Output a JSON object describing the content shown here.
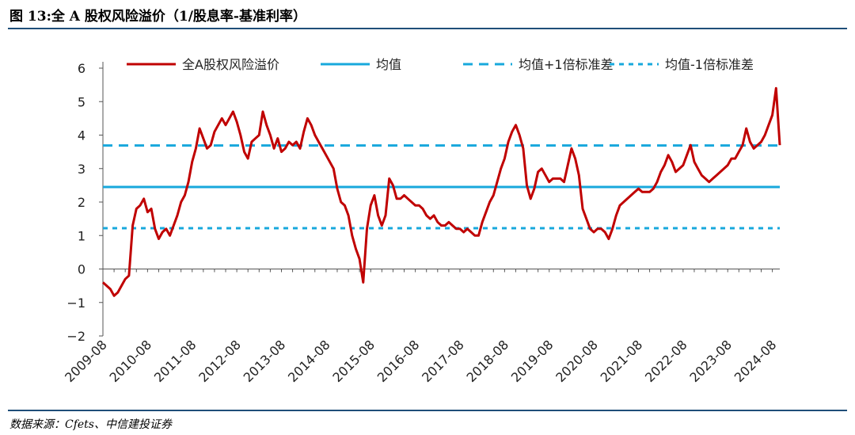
{
  "figure": {
    "title": "图 13:全 A 股权风险溢价（1/股息率-基准利率）",
    "source": "数据来源：Cfets、中信建投证券"
  },
  "colors": {
    "series": "#c00000",
    "mean": "#18a8dc",
    "band": "#18a8dc",
    "rule": "#1f4e79"
  },
  "chart_data": {
    "type": "line",
    "title": "",
    "xlabel": "",
    "ylabel": "",
    "ylim": [
      -2,
      6
    ],
    "yticks": [
      -2,
      -1,
      0,
      1,
      2,
      3,
      4,
      5,
      6
    ],
    "xlim": [
      "2009-08",
      "2024-10"
    ],
    "xticks": [
      "2009-08",
      "2010-08",
      "2011-08",
      "2012-08",
      "2013-08",
      "2014-08",
      "2015-08",
      "2016-08",
      "2017-08",
      "2018-08",
      "2019-08",
      "2020-08",
      "2021-08",
      "2022-08",
      "2023-08",
      "2024-08"
    ],
    "legend_position": "top",
    "grid": false,
    "series": [
      {
        "name": "全A股权风险溢价",
        "style": "solid",
        "points": [
          [
            "2009-08",
            -0.4
          ],
          [
            "2009-09",
            -0.5
          ],
          [
            "2009-10",
            -0.6
          ],
          [
            "2009-11",
            -0.8
          ],
          [
            "2009-12",
            -0.7
          ],
          [
            "2010-01",
            -0.5
          ],
          [
            "2010-02",
            -0.3
          ],
          [
            "2010-03",
            -0.2
          ],
          [
            "2010-04",
            1.3
          ],
          [
            "2010-05",
            1.8
          ],
          [
            "2010-06",
            1.9
          ],
          [
            "2010-07",
            2.1
          ],
          [
            "2010-08",
            1.7
          ],
          [
            "2010-09",
            1.8
          ],
          [
            "2010-10",
            1.2
          ],
          [
            "2010-11",
            0.9
          ],
          [
            "2010-12",
            1.1
          ],
          [
            "2011-01",
            1.2
          ],
          [
            "2011-02",
            1.0
          ],
          [
            "2011-03",
            1.3
          ],
          [
            "2011-04",
            1.6
          ],
          [
            "2011-05",
            2.0
          ],
          [
            "2011-06",
            2.2
          ],
          [
            "2011-07",
            2.6
          ],
          [
            "2011-08",
            3.2
          ],
          [
            "2011-09",
            3.6
          ],
          [
            "2011-10",
            4.2
          ],
          [
            "2011-11",
            3.9
          ],
          [
            "2011-12",
            3.6
          ],
          [
            "2012-01",
            3.7
          ],
          [
            "2012-02",
            4.1
          ],
          [
            "2012-03",
            4.3
          ],
          [
            "2012-04",
            4.5
          ],
          [
            "2012-05",
            4.3
          ],
          [
            "2012-06",
            4.5
          ],
          [
            "2012-07",
            4.7
          ],
          [
            "2012-08",
            4.4
          ],
          [
            "2012-09",
            4.0
          ],
          [
            "2012-10",
            3.5
          ],
          [
            "2012-11",
            3.3
          ],
          [
            "2012-12",
            3.8
          ],
          [
            "2013-01",
            3.9
          ],
          [
            "2013-02",
            4.0
          ],
          [
            "2013-03",
            4.7
          ],
          [
            "2013-04",
            4.3
          ],
          [
            "2013-05",
            4.0
          ],
          [
            "2013-06",
            3.6
          ],
          [
            "2013-07",
            3.9
          ],
          [
            "2013-08",
            3.5
          ],
          [
            "2013-09",
            3.6
          ],
          [
            "2013-10",
            3.8
          ],
          [
            "2013-11",
            3.7
          ],
          [
            "2013-12",
            3.8
          ],
          [
            "2014-01",
            3.6
          ],
          [
            "2014-02",
            4.1
          ],
          [
            "2014-03",
            4.5
          ],
          [
            "2014-04",
            4.3
          ],
          [
            "2014-05",
            4.0
          ],
          [
            "2014-06",
            3.8
          ],
          [
            "2014-07",
            3.6
          ],
          [
            "2014-08",
            3.4
          ],
          [
            "2014-09",
            3.2
          ],
          [
            "2014-10",
            3.0
          ],
          [
            "2014-11",
            2.4
          ],
          [
            "2014-12",
            2.0
          ],
          [
            "2015-01",
            1.9
          ],
          [
            "2015-02",
            1.6
          ],
          [
            "2015-03",
            1.0
          ],
          [
            "2015-04",
            0.6
          ],
          [
            "2015-05",
            0.3
          ],
          [
            "2015-06",
            -0.4
          ],
          [
            "2015-07",
            1.2
          ],
          [
            "2015-08",
            1.9
          ],
          [
            "2015-09",
            2.2
          ],
          [
            "2015-10",
            1.6
          ],
          [
            "2015-11",
            1.3
          ],
          [
            "2015-12",
            1.6
          ],
          [
            "2016-01",
            2.7
          ],
          [
            "2016-02",
            2.5
          ],
          [
            "2016-03",
            2.1
          ],
          [
            "2016-04",
            2.1
          ],
          [
            "2016-05",
            2.2
          ],
          [
            "2016-06",
            2.1
          ],
          [
            "2016-07",
            2.0
          ],
          [
            "2016-08",
            1.9
          ],
          [
            "2016-09",
            1.9
          ],
          [
            "2016-10",
            1.8
          ],
          [
            "2016-11",
            1.6
          ],
          [
            "2016-12",
            1.5
          ],
          [
            "2017-01",
            1.6
          ],
          [
            "2017-02",
            1.4
          ],
          [
            "2017-03",
            1.3
          ],
          [
            "2017-04",
            1.3
          ],
          [
            "2017-05",
            1.4
          ],
          [
            "2017-06",
            1.3
          ],
          [
            "2017-07",
            1.2
          ],
          [
            "2017-08",
            1.2
          ],
          [
            "2017-09",
            1.1
          ],
          [
            "2017-10",
            1.2
          ],
          [
            "2017-11",
            1.1
          ],
          [
            "2017-12",
            1.0
          ],
          [
            "2018-01",
            1.0
          ],
          [
            "2018-02",
            1.4
          ],
          [
            "2018-03",
            1.7
          ],
          [
            "2018-04",
            2.0
          ],
          [
            "2018-05",
            2.2
          ],
          [
            "2018-06",
            2.6
          ],
          [
            "2018-07",
            3.0
          ],
          [
            "2018-08",
            3.3
          ],
          [
            "2018-09",
            3.8
          ],
          [
            "2018-10",
            4.1
          ],
          [
            "2018-11",
            4.3
          ],
          [
            "2018-12",
            4.0
          ],
          [
            "2019-01",
            3.6
          ],
          [
            "2019-02",
            2.5
          ],
          [
            "2019-03",
            2.1
          ],
          [
            "2019-04",
            2.4
          ],
          [
            "2019-05",
            2.9
          ],
          [
            "2019-06",
            3.0
          ],
          [
            "2019-07",
            2.8
          ],
          [
            "2019-08",
            2.6
          ],
          [
            "2019-09",
            2.7
          ],
          [
            "2019-10",
            2.7
          ],
          [
            "2019-11",
            2.7
          ],
          [
            "2019-12",
            2.6
          ],
          [
            "2020-01",
            3.1
          ],
          [
            "2020-02",
            3.6
          ],
          [
            "2020-03",
            3.3
          ],
          [
            "2020-04",
            2.8
          ],
          [
            "2020-05",
            1.8
          ],
          [
            "2020-06",
            1.5
          ],
          [
            "2020-07",
            1.2
          ],
          [
            "2020-08",
            1.1
          ],
          [
            "2020-09",
            1.2
          ],
          [
            "2020-10",
            1.2
          ],
          [
            "2020-11",
            1.1
          ],
          [
            "2020-12",
            0.9
          ],
          [
            "2021-01",
            1.2
          ],
          [
            "2021-02",
            1.6
          ],
          [
            "2021-03",
            1.9
          ],
          [
            "2021-04",
            2.0
          ],
          [
            "2021-05",
            2.1
          ],
          [
            "2021-06",
            2.2
          ],
          [
            "2021-07",
            2.3
          ],
          [
            "2021-08",
            2.4
          ],
          [
            "2021-09",
            2.3
          ],
          [
            "2021-10",
            2.3
          ],
          [
            "2021-11",
            2.3
          ],
          [
            "2021-12",
            2.4
          ],
          [
            "2022-01",
            2.6
          ],
          [
            "2022-02",
            2.9
          ],
          [
            "2022-03",
            3.1
          ],
          [
            "2022-04",
            3.4
          ],
          [
            "2022-05",
            3.2
          ],
          [
            "2022-06",
            2.9
          ],
          [
            "2022-07",
            3.0
          ],
          [
            "2022-08",
            3.1
          ],
          [
            "2022-09",
            3.4
          ],
          [
            "2022-10",
            3.7
          ],
          [
            "2022-11",
            3.2
          ],
          [
            "2022-12",
            3.0
          ],
          [
            "2023-01",
            2.8
          ],
          [
            "2023-02",
            2.7
          ],
          [
            "2023-03",
            2.6
          ],
          [
            "2023-04",
            2.7
          ],
          [
            "2023-05",
            2.8
          ],
          [
            "2023-06",
            2.9
          ],
          [
            "2023-07",
            3.0
          ],
          [
            "2023-08",
            3.1
          ],
          [
            "2023-09",
            3.3
          ],
          [
            "2023-10",
            3.3
          ],
          [
            "2023-11",
            3.5
          ],
          [
            "2023-12",
            3.7
          ],
          [
            "2024-01",
            4.2
          ],
          [
            "2024-02",
            3.8
          ],
          [
            "2024-03",
            3.6
          ],
          [
            "2024-04",
            3.7
          ],
          [
            "2024-05",
            3.8
          ],
          [
            "2024-06",
            4.0
          ],
          [
            "2024-07",
            4.3
          ],
          [
            "2024-08",
            4.6
          ],
          [
            "2024-09",
            5.4
          ],
          [
            "2024-10",
            3.7
          ]
        ]
      },
      {
        "name": "均值",
        "style": "solid",
        "value": 2.45
      },
      {
        "name": "均值+1倍标准差",
        "style": "dashed",
        "value": 3.69
      },
      {
        "name": "均值-1倍标准差",
        "style": "dotted-dashed",
        "value": 1.22
      }
    ]
  }
}
